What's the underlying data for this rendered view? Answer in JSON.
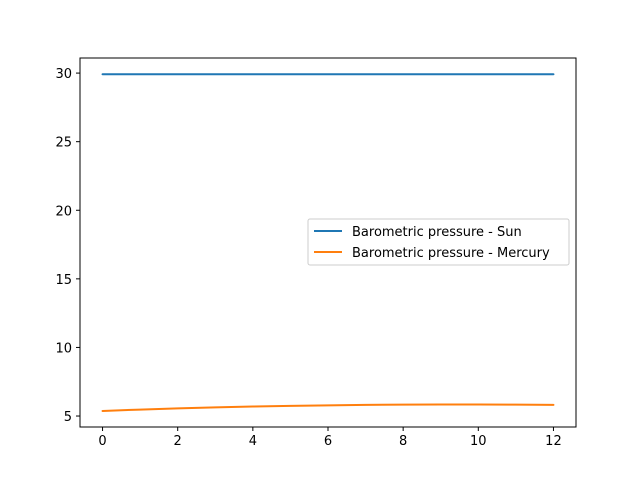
{
  "chart_data": {
    "type": "line",
    "title": "",
    "xlabel": "",
    "ylabel": "",
    "xlim": [
      -0.6,
      12.6
    ],
    "ylim": [
      4.2,
      31.1
    ],
    "x_ticks": [
      0,
      2,
      4,
      6,
      8,
      10,
      12
    ],
    "y_ticks": [
      5,
      10,
      15,
      20,
      25,
      30
    ],
    "grid": false,
    "legend_position": "center-right",
    "x": [
      0,
      1,
      2,
      3,
      4,
      5,
      6,
      7,
      8,
      9,
      10,
      11,
      12
    ],
    "series": [
      {
        "name": "Barometric pressure - Sun",
        "color": "#1f77b4",
        "values": [
          29.92,
          29.92,
          29.92,
          29.92,
          29.92,
          29.92,
          29.92,
          29.92,
          29.92,
          29.92,
          29.92,
          29.92,
          29.92
        ]
      },
      {
        "name": "Barometric pressure - Mercury",
        "color": "#ff7f0e",
        "values": [
          5.37,
          5.47,
          5.56,
          5.63,
          5.69,
          5.74,
          5.78,
          5.81,
          5.83,
          5.84,
          5.84,
          5.83,
          5.81
        ]
      }
    ]
  }
}
